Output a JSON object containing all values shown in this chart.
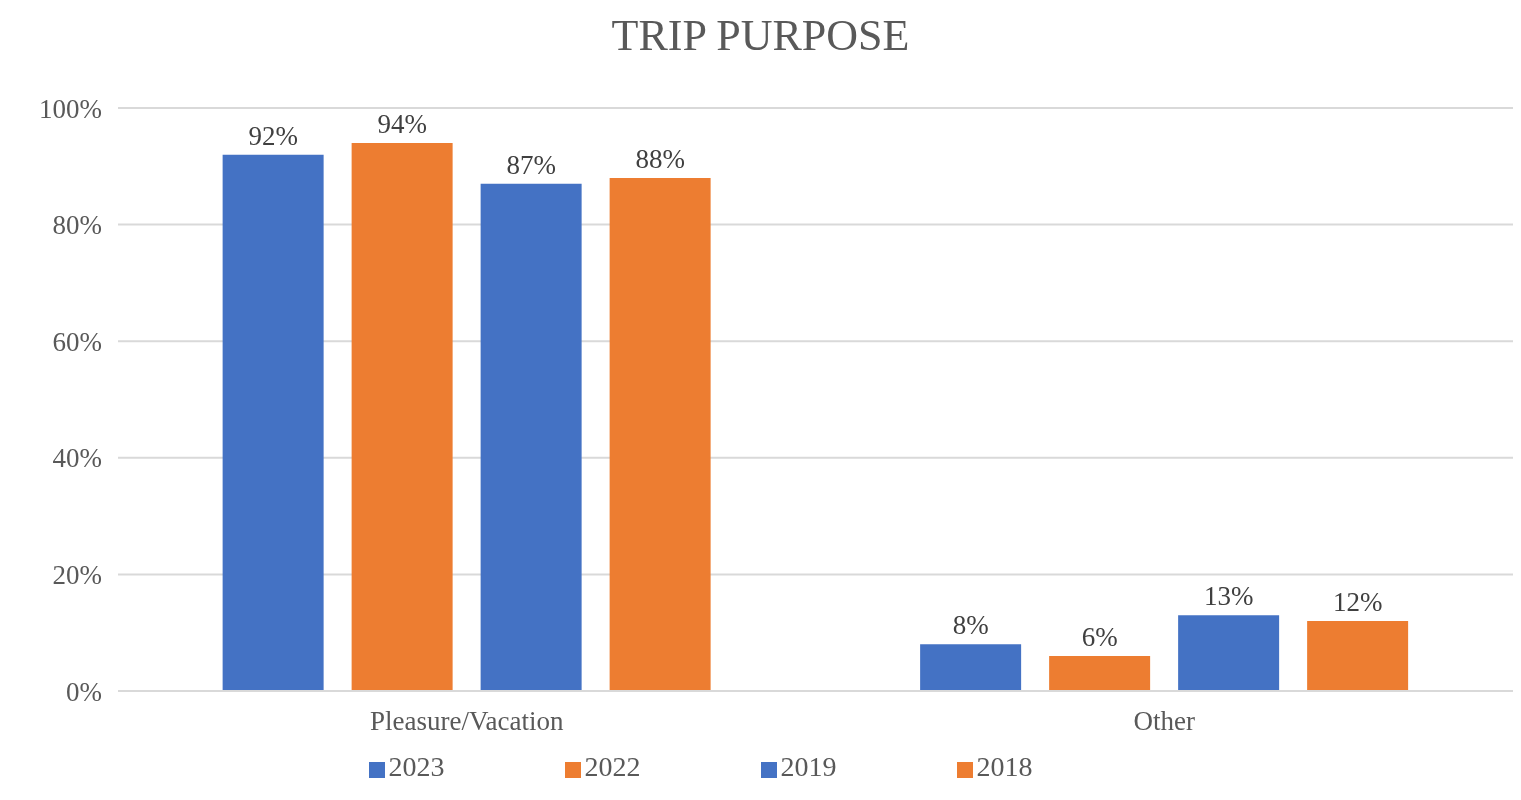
{
  "chart_data": {
    "type": "bar",
    "title": "TRIP PURPOSE",
    "categories": [
      "Pleasure/Vacation",
      "Other"
    ],
    "series": [
      {
        "name": "2023",
        "color": "#4472c4",
        "values": [
          92,
          8
        ],
        "value_labels": [
          "92%",
          "8%"
        ]
      },
      {
        "name": "2022",
        "color": "#ed7d31",
        "values": [
          94,
          6
        ],
        "value_labels": [
          "94%",
          "6%"
        ]
      },
      {
        "name": "2019",
        "color": "#4472c4",
        "values": [
          87,
          13
        ],
        "value_labels": [
          "87%",
          "13%"
        ]
      },
      {
        "name": "2018",
        "color": "#ed7d31",
        "values": [
          88,
          12
        ],
        "value_labels": [
          "88%",
          "12%"
        ]
      }
    ],
    "ylim": [
      0,
      100
    ],
    "yticks": [
      {
        "value": 0,
        "label": "0%"
      },
      {
        "value": 20,
        "label": "20%"
      },
      {
        "value": 40,
        "label": "40%"
      },
      {
        "value": 60,
        "label": "60%"
      },
      {
        "value": 80,
        "label": "80%"
      },
      {
        "value": 100,
        "label": "100%"
      }
    ],
    "grid": "y",
    "legend": "bottom"
  }
}
